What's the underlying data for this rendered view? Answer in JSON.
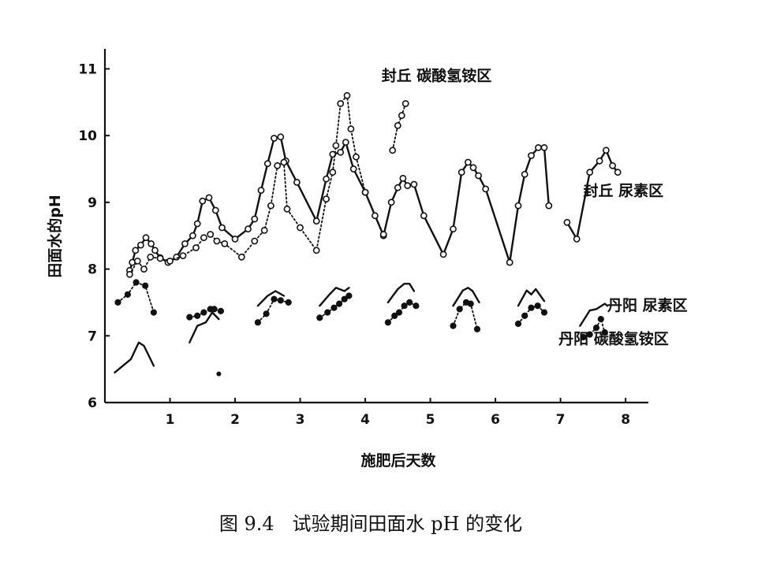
{
  "chart_data": {
    "type": "line",
    "title": "",
    "caption": "图 9.4   试验期间田面水 pH 的变化",
    "xlabel": "施肥后天数",
    "ylabel": "田面水的pH",
    "xlim": [
      0,
      8.35
    ],
    "ylim": [
      6,
      11.3
    ],
    "xticks": [
      "1",
      "2",
      "3",
      "4",
      "5",
      "6",
      "7",
      "8"
    ],
    "yticks": [
      "6",
      "7",
      "8",
      "9",
      "10",
      "11"
    ],
    "series": [
      {
        "name": "封丘 尿素区",
        "style": "solid-open",
        "segments": [
          [
            [
              0.38,
              7.98
            ],
            [
              0.42,
              8.1
            ],
            [
              0.47,
              8.28
            ],
            [
              0.55,
              8.36
            ],
            [
              0.63,
              8.47
            ],
            [
              0.71,
              8.38
            ],
            [
              0.77,
              8.28
            ],
            [
              0.85,
              8.17
            ],
            [
              0.97,
              8.1
            ],
            [
              1.1,
              8.18
            ],
            [
              1.23,
              8.38
            ],
            [
              1.35,
              8.5
            ],
            [
              1.42,
              8.68
            ],
            [
              1.5,
              9.02
            ],
            [
              1.6,
              9.07
            ],
            [
              1.7,
              8.88
            ],
            [
              1.8,
              8.62
            ],
            [
              2.0,
              8.45
            ],
            [
              2.2,
              8.6
            ],
            [
              2.3,
              8.75
            ],
            [
              2.4,
              9.18
            ],
            [
              2.5,
              9.58
            ],
            [
              2.6,
              9.96
            ],
            [
              2.7,
              9.98
            ],
            [
              2.78,
              9.62
            ],
            [
              2.95,
              9.3
            ],
            [
              3.25,
              8.72
            ],
            [
              3.4,
              9.35
            ],
            [
              3.5,
              9.72
            ],
            [
              3.62,
              9.75
            ],
            [
              3.7,
              9.9
            ],
            [
              3.82,
              9.5
            ],
            [
              4.0,
              9.15
            ],
            [
              4.28,
              8.5
            ],
            [
              4.4,
              9.0
            ],
            [
              4.5,
              9.22
            ],
            [
              4.58,
              9.36
            ],
            [
              4.65,
              9.25
            ],
            [
              4.75,
              9.27
            ],
            [
              4.9,
              8.8
            ],
            [
              5.2,
              8.22
            ],
            [
              5.35,
              8.6
            ],
            [
              5.48,
              9.45
            ],
            [
              5.58,
              9.6
            ],
            [
              5.66,
              9.52
            ],
            [
              5.74,
              9.4
            ],
            [
              5.85,
              9.2
            ],
            [
              6.22,
              8.1
            ],
            [
              6.35,
              8.95
            ],
            [
              6.45,
              9.42
            ],
            [
              6.55,
              9.7
            ],
            [
              6.66,
              9.82
            ],
            [
              6.75,
              9.82
            ],
            [
              6.82,
              8.95
            ]
          ],
          [
            [
              7.1,
              8.7
            ],
            [
              7.25,
              8.45
            ],
            [
              7.45,
              9.45
            ],
            [
              7.6,
              9.62
            ],
            [
              7.7,
              9.78
            ],
            [
              7.8,
              9.55
            ],
            [
              7.88,
              9.45
            ]
          ]
        ]
      },
      {
        "name": "封丘 碳酸氢铵区",
        "style": "dotted-open",
        "segments": [
          [
            [
              0.38,
              7.92
            ],
            [
              0.5,
              8.12
            ],
            [
              0.6,
              8.0
            ],
            [
              0.7,
              8.18
            ],
            [
              0.85,
              8.16
            ],
            [
              1.0,
              8.12
            ],
            [
              1.2,
              8.2
            ],
            [
              1.4,
              8.32
            ],
            [
              1.52,
              8.47
            ],
            [
              1.62,
              8.52
            ],
            [
              1.72,
              8.42
            ],
            [
              1.84,
              8.38
            ],
            [
              2.1,
              8.18
            ],
            [
              2.3,
              8.42
            ],
            [
              2.45,
              8.58
            ],
            [
              2.55,
              8.95
            ],
            [
              2.65,
              9.55
            ],
            [
              2.75,
              9.6
            ],
            [
              2.8,
              8.9
            ],
            [
              3.0,
              8.62
            ],
            [
              3.25,
              8.28
            ],
            [
              3.4,
              9.05
            ],
            [
              3.5,
              9.45
            ],
            [
              3.55,
              9.85
            ],
            [
              3.62,
              10.48
            ],
            [
              3.72,
              10.6
            ],
            [
              3.78,
              10.1
            ],
            [
              3.86,
              9.68
            ],
            [
              4.0,
              9.15
            ],
            [
              4.15,
              8.8
            ],
            [
              4.28,
              8.52
            ]
          ],
          [
            [
              4.42,
              9.78
            ],
            [
              4.5,
              10.15
            ],
            [
              4.56,
              10.3
            ],
            [
              4.62,
              10.48
            ]
          ]
        ]
      },
      {
        "name": "丹阳 尿素区",
        "style": "solid-plain",
        "segments": [
          [
            [
              0.15,
              6.45
            ],
            [
              0.4,
              6.65
            ],
            [
              0.52,
              6.9
            ],
            [
              0.6,
              6.85
            ],
            [
              0.75,
              6.55
            ]
          ],
          [
            [
              1.3,
              6.9
            ],
            [
              1.42,
              7.15
            ],
            [
              1.55,
              7.2
            ],
            [
              1.65,
              7.35
            ],
            [
              1.75,
              7.25
            ]
          ],
          [
            [
              2.35,
              7.45
            ],
            [
              2.5,
              7.6
            ],
            [
              2.62,
              7.67
            ],
            [
              2.75,
              7.6
            ]
          ],
          [
            [
              3.3,
              7.45
            ],
            [
              3.45,
              7.62
            ],
            [
              3.55,
              7.72
            ],
            [
              3.68,
              7.67
            ],
            [
              3.75,
              7.72
            ]
          ],
          [
            [
              4.35,
              7.5
            ],
            [
              4.5,
              7.7
            ],
            [
              4.6,
              7.78
            ],
            [
              4.68,
              7.78
            ],
            [
              4.75,
              7.67
            ]
          ],
          [
            [
              5.35,
              7.45
            ],
            [
              5.5,
              7.68
            ],
            [
              5.58,
              7.72
            ],
            [
              5.65,
              7.67
            ],
            [
              5.75,
              7.5
            ]
          ],
          [
            [
              6.35,
              7.45
            ],
            [
              6.48,
              7.68
            ],
            [
              6.55,
              7.62
            ],
            [
              6.62,
              7.7
            ],
            [
              6.75,
              7.52
            ]
          ],
          [
            [
              7.3,
              7.15
            ],
            [
              7.45,
              7.38
            ],
            [
              7.55,
              7.4
            ],
            [
              7.68,
              7.48
            ],
            [
              7.72,
              7.45
            ]
          ]
        ]
      },
      {
        "name": "丹阳 碳酸氢铵区",
        "style": "dotted-filled",
        "segments": [
          [
            [
              0.2,
              7.5
            ],
            [
              0.35,
              7.62
            ],
            [
              0.48,
              7.8
            ],
            [
              0.62,
              7.75
            ],
            [
              0.75,
              7.35
            ]
          ],
          [
            [
              1.3,
              7.28
            ],
            [
              1.42,
              7.3
            ],
            [
              1.52,
              7.35
            ],
            [
              1.62,
              7.4
            ],
            [
              1.68,
              7.4
            ],
            [
              1.78,
              7.37
            ]
          ],
          [
            [
              2.35,
              7.2
            ],
            [
              2.48,
              7.33
            ],
            [
              2.6,
              7.55
            ],
            [
              2.7,
              7.53
            ],
            [
              2.82,
              7.5
            ]
          ],
          [
            [
              3.3,
              7.27
            ],
            [
              3.42,
              7.35
            ],
            [
              3.52,
              7.42
            ],
            [
              3.6,
              7.48
            ],
            [
              3.68,
              7.55
            ],
            [
              3.75,
              7.6
            ]
          ],
          [
            [
              4.35,
              7.2
            ],
            [
              4.45,
              7.3
            ],
            [
              4.52,
              7.35
            ],
            [
              4.6,
              7.45
            ],
            [
              4.68,
              7.5
            ],
            [
              4.78,
              7.45
            ]
          ],
          [
            [
              5.35,
              7.15
            ],
            [
              5.45,
              7.4
            ],
            [
              5.55,
              7.5
            ],
            [
              5.62,
              7.48
            ],
            [
              5.72,
              7.1
            ]
          ],
          [
            [
              6.35,
              7.18
            ],
            [
              6.45,
              7.3
            ],
            [
              6.55,
              7.42
            ],
            [
              6.65,
              7.45
            ],
            [
              6.75,
              7.35
            ]
          ],
          [
            [
              7.35,
              6.98
            ],
            [
              7.45,
              7.02
            ],
            [
              7.55,
              7.12
            ],
            [
              7.62,
              7.25
            ],
            [
              7.68,
              7.05
            ]
          ]
        ]
      }
    ],
    "extra_points": [
      [
        1.75,
        6.43
      ]
    ],
    "annotations": [
      {
        "text": "封丘  碳酸氢铵区",
        "x": 4.25,
        "y": 10.82
      },
      {
        "text": "封丘  尿素区",
        "x": 7.35,
        "y": 9.1
      },
      {
        "text": "丹阳  尿素区",
        "x": 7.72,
        "y": 7.38
      },
      {
        "text": "丹阳  碳酸氢铵区",
        "x": 6.97,
        "y": 6.88
      }
    ]
  }
}
